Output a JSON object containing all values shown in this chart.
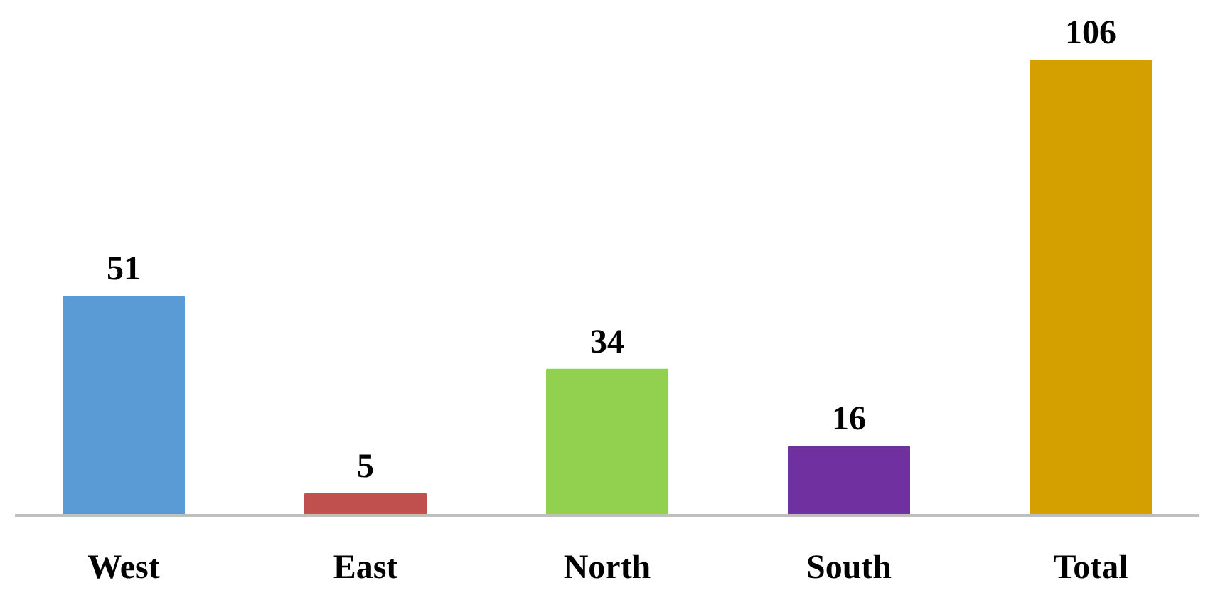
{
  "chart_data": {
    "type": "bar",
    "categories": [
      "West",
      "East",
      "North",
      "South",
      "Total"
    ],
    "values": [
      51,
      5,
      34,
      16,
      106
    ],
    "colors": [
      "#5b9bd5",
      "#c0504d",
      "#92d050",
      "#7030a0",
      "#d4a000"
    ],
    "data_labels": true
  }
}
